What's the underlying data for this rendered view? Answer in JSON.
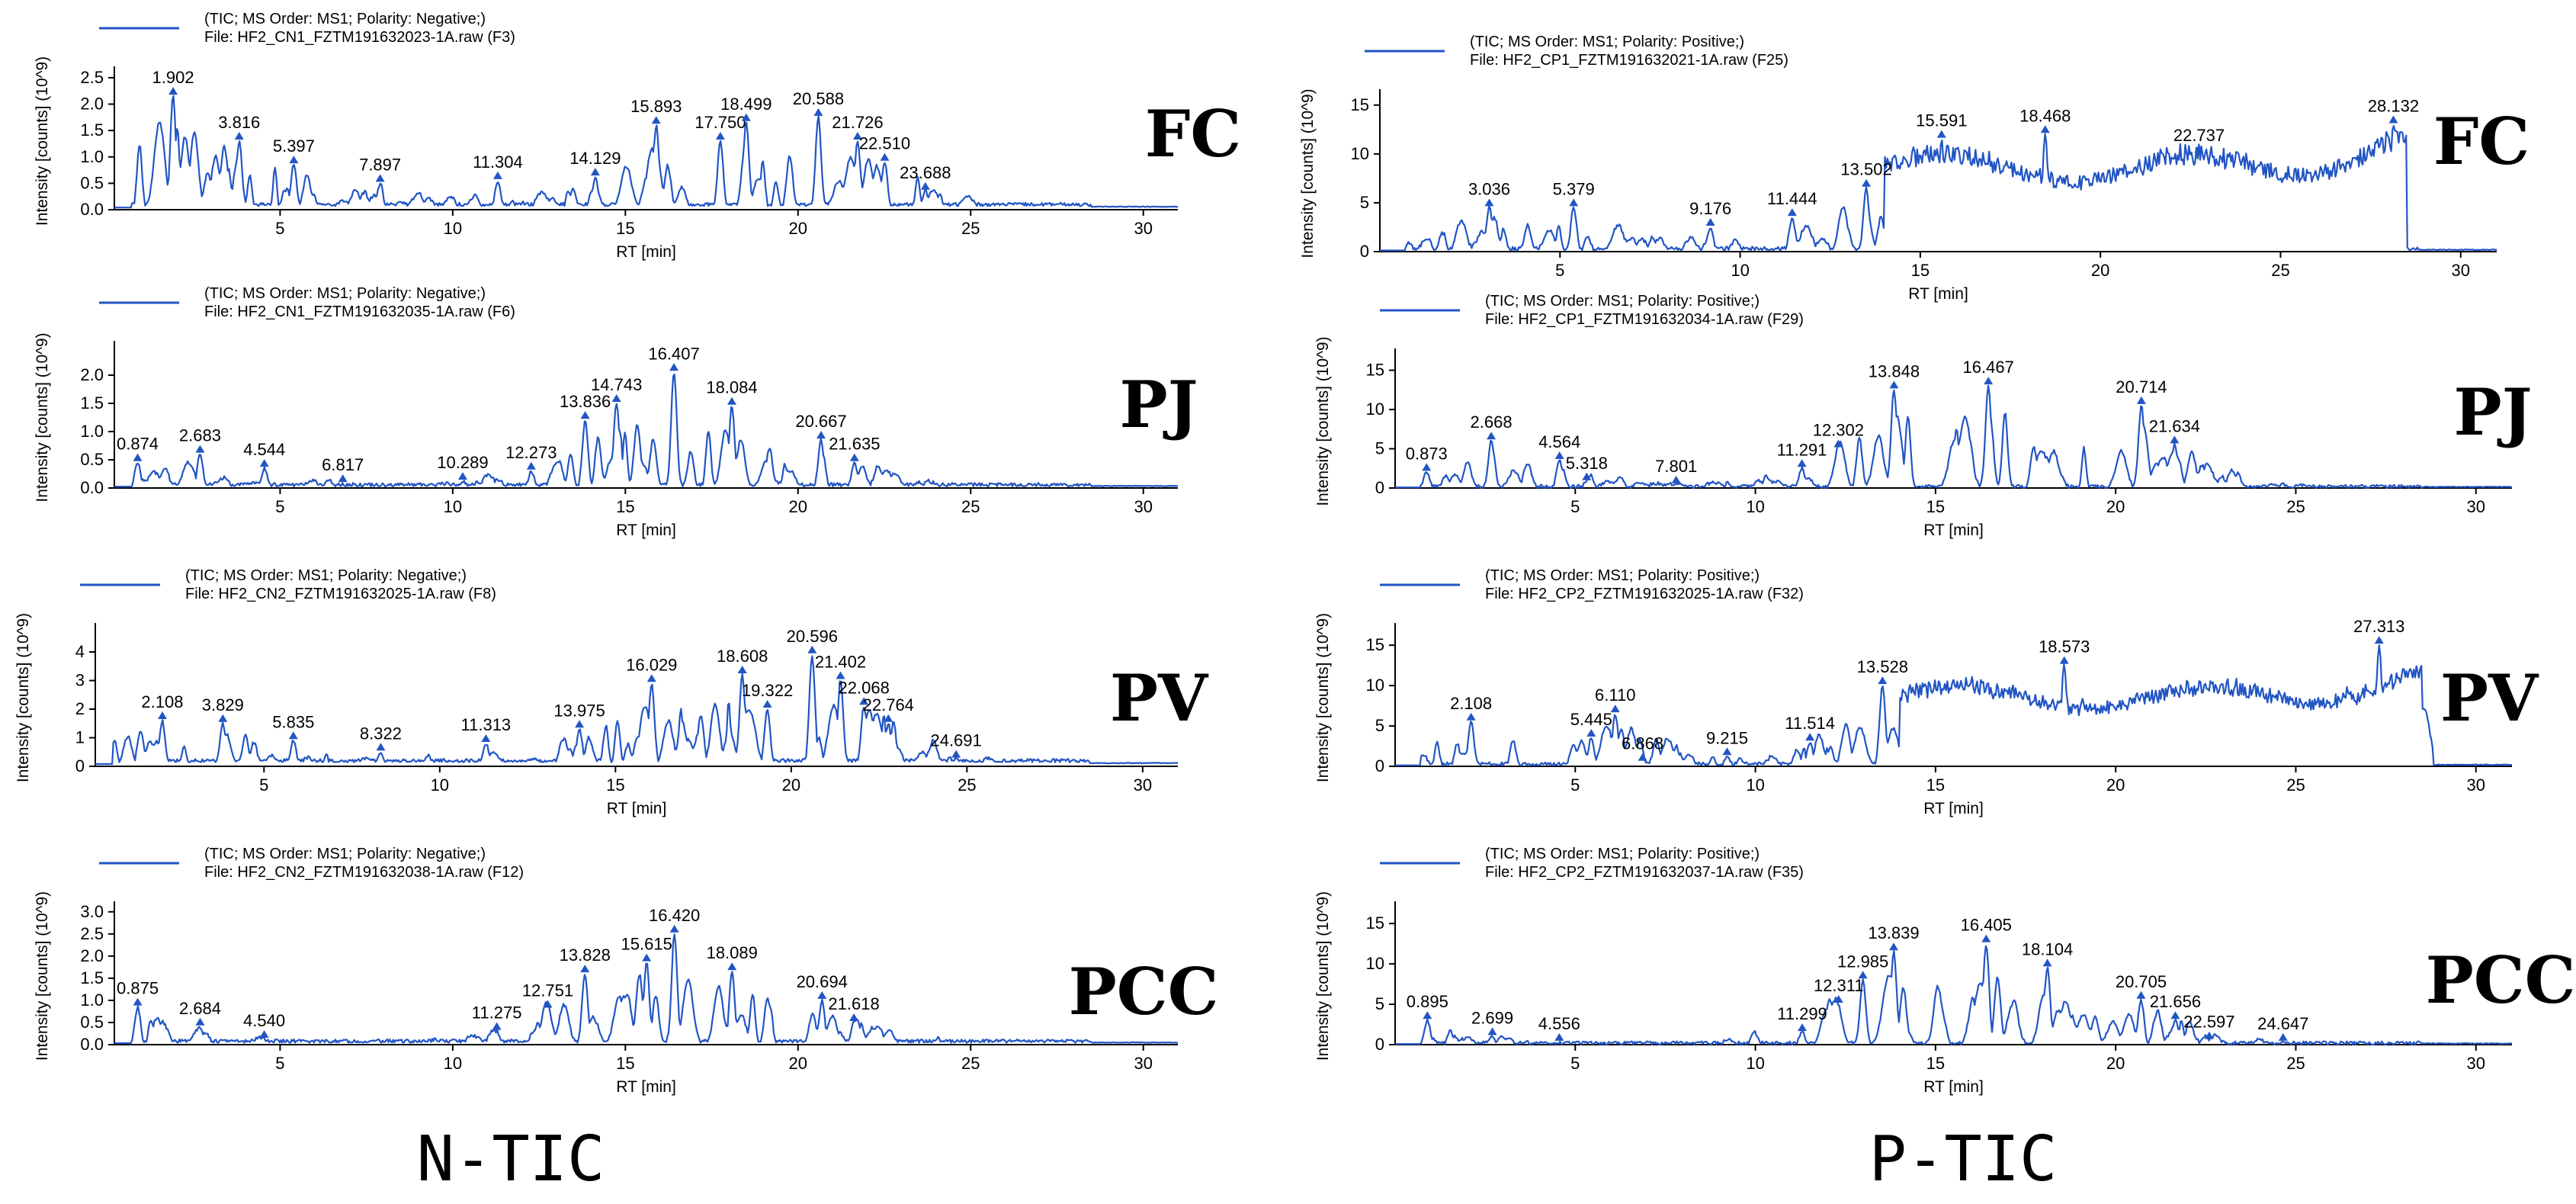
{
  "labels": {
    "left_caption": "N-TIC",
    "right_caption": "P-TIC"
  },
  "colors": {
    "trace": "#2255c4"
  },
  "chart_data": [
    {
      "type": "line",
      "id": "n_fc",
      "sample": "FC",
      "legend": [
        "(TIC; MS Order: MS1; Polarity: Negative;)",
        "File: HF2_CN1_FZTM191632023-1A.raw (F3)"
      ],
      "xlabel": "RT [min]",
      "ylabel": "Intensity [counts] (10^9)",
      "xlim": [
        0.2,
        31
      ],
      "ylim": [
        0,
        2.6
      ],
      "xticks": [
        5,
        10,
        15,
        20,
        25,
        30
      ],
      "yticks": [
        0,
        0.5,
        1.0,
        1.5,
        2.0,
        2.5
      ],
      "baseline": 0.1,
      "start": 0.7,
      "end": 28.5,
      "peaks": [
        {
          "x": 1.902,
          "y": 2.15,
          "label": "1.902"
        },
        {
          "x": 3.816,
          "y": 1.3,
          "label": "3.816"
        },
        {
          "x": 5.397,
          "y": 0.85,
          "label": "5.397"
        },
        {
          "x": 7.897,
          "y": 0.5,
          "label": "7.897"
        },
        {
          "x": 11.304,
          "y": 0.55,
          "label": "11.304"
        },
        {
          "x": 14.129,
          "y": 0.62,
          "label": "14.129"
        },
        {
          "x": 15.893,
          "y": 1.6,
          "label": "15.893"
        },
        {
          "x": 17.75,
          "y": 1.3,
          "label": "17.750"
        },
        {
          "x": 18.499,
          "y": 1.65,
          "label": "18.499"
        },
        {
          "x": 20.588,
          "y": 1.75,
          "label": "20.588"
        },
        {
          "x": 21.726,
          "y": 1.3,
          "label": "21.726"
        },
        {
          "x": 22.51,
          "y": 0.9,
          "label": "22.510"
        },
        {
          "x": 23.688,
          "y": 0.35,
          "label": "23.688"
        }
      ]
    },
    {
      "type": "line",
      "id": "n_pj",
      "sample": "PJ",
      "legend": [
        "(TIC; MS Order: MS1; Polarity: Negative;)",
        "File: HF2_CN1_FZTM191632035-1A.raw (F6)"
      ],
      "xlabel": "RT [min]",
      "ylabel": "Intensity [counts] (10^9)",
      "xlim": [
        0.2,
        31
      ],
      "ylim": [
        0,
        2.5
      ],
      "xticks": [
        5,
        10,
        15,
        20,
        25,
        30
      ],
      "yticks": [
        0,
        0.5,
        1.0,
        1.5,
        2.0
      ],
      "baseline": 0.06,
      "start": 0.7,
      "end": 28.5,
      "peaks": [
        {
          "x": 0.874,
          "y": 0.45,
          "label": "0.874"
        },
        {
          "x": 2.683,
          "y": 0.6,
          "label": "2.683"
        },
        {
          "x": 4.544,
          "y": 0.35,
          "label": "4.544"
        },
        {
          "x": 6.817,
          "y": 0.08,
          "label": "6.817"
        },
        {
          "x": 10.289,
          "y": 0.12,
          "label": "10.289"
        },
        {
          "x": 12.273,
          "y": 0.3,
          "label": "12.273"
        },
        {
          "x": 13.836,
          "y": 1.2,
          "label": "13.836"
        },
        {
          "x": 14.743,
          "y": 1.5,
          "label": "14.743"
        },
        {
          "x": 16.407,
          "y": 2.05,
          "label": "16.407"
        },
        {
          "x": 18.084,
          "y": 1.45,
          "label": "18.084"
        },
        {
          "x": 20.667,
          "y": 0.85,
          "label": "20.667"
        },
        {
          "x": 21.635,
          "y": 0.45,
          "label": "21.635"
        }
      ]
    },
    {
      "type": "line",
      "id": "n_pv",
      "sample": "PV",
      "legend": [
        "(TIC; MS Order: MS1; Polarity: Negative;)",
        "File: HF2_CN2_FZTM191632025-1A.raw (F8)"
      ],
      "xlabel": "RT [min]",
      "ylabel": "Intensity [counts] (10^9)",
      "xlim": [
        0.2,
        31
      ],
      "ylim": [
        0,
        4.8
      ],
      "xticks": [
        5,
        10,
        15,
        20,
        25,
        30
      ],
      "yticks": [
        0,
        1,
        2,
        3,
        4
      ],
      "baseline": 0.2,
      "start": 0.7,
      "end": 28.5,
      "peaks": [
        {
          "x": 2.108,
          "y": 1.6,
          "label": "2.108"
        },
        {
          "x": 3.829,
          "y": 1.5,
          "label": "3.829"
        },
        {
          "x": 5.835,
          "y": 0.9,
          "label": "5.835"
        },
        {
          "x": 8.322,
          "y": 0.5,
          "label": "8.322"
        },
        {
          "x": 11.313,
          "y": 0.8,
          "label": "11.313"
        },
        {
          "x": 13.975,
          "y": 1.3,
          "label": "13.975"
        },
        {
          "x": 16.029,
          "y": 2.9,
          "label": "16.029"
        },
        {
          "x": 18.608,
          "y": 3.2,
          "label": "18.608"
        },
        {
          "x": 19.322,
          "y": 2.0,
          "label": "19.322"
        },
        {
          "x": 20.596,
          "y": 3.9,
          "label": "20.596"
        },
        {
          "x": 21.402,
          "y": 3.0,
          "label": "21.402"
        },
        {
          "x": 22.068,
          "y": 2.1,
          "label": "22.068"
        },
        {
          "x": 22.764,
          "y": 1.5,
          "label": "22.764"
        },
        {
          "x": 24.691,
          "y": 0.25,
          "label": "24.691"
        }
      ]
    },
    {
      "type": "line",
      "id": "n_pcc",
      "sample": "PCC",
      "legend": [
        "(TIC; MS Order: MS1; Polarity: Negative;)",
        "File: HF2_CN2_FZTM191632038-1A.raw (F12)"
      ],
      "xlabel": "RT [min]",
      "ylabel": "Intensity [counts] (10^9)",
      "xlim": [
        0.2,
        31
      ],
      "ylim": [
        0,
        3.1
      ],
      "xticks": [
        5,
        10,
        15,
        20,
        25,
        30
      ],
      "yticks": [
        0,
        0.5,
        1.0,
        1.5,
        2.0,
        2.5,
        3.0
      ],
      "baseline": 0.08,
      "start": 0.7,
      "end": 28.5,
      "peaks": [
        {
          "x": 0.875,
          "y": 0.85,
          "label": "0.875"
        },
        {
          "x": 2.684,
          "y": 0.4,
          "label": "2.684"
        },
        {
          "x": 4.54,
          "y": 0.12,
          "label": "4.540"
        },
        {
          "x": 11.275,
          "y": 0.3,
          "label": "11.275"
        },
        {
          "x": 12.751,
          "y": 0.8,
          "label": "12.751"
        },
        {
          "x": 13.828,
          "y": 1.6,
          "label": "13.828"
        },
        {
          "x": 15.615,
          "y": 1.85,
          "label": "15.615"
        },
        {
          "x": 16.42,
          "y": 2.5,
          "label": "16.420"
        },
        {
          "x": 18.089,
          "y": 1.65,
          "label": "18.089"
        },
        {
          "x": 20.694,
          "y": 1.0,
          "label": "20.694"
        },
        {
          "x": 21.618,
          "y": 0.5,
          "label": "21.618"
        }
      ]
    },
    {
      "type": "line",
      "id": "p_fc",
      "sample": "FC",
      "legend": [
        "(TIC; MS Order: MS1; Polarity: Positive;)",
        "File: HF2_CP1_FZTM191632021-1A.raw (F25)"
      ],
      "xlabel": "RT [min]",
      "ylabel": "Intensity [counts] (10^9)",
      "xlim": [
        0,
        31
      ],
      "ylim": [
        0,
        16
      ],
      "xticks": [
        5,
        10,
        15,
        20,
        25,
        30
      ],
      "yticks": [
        0,
        5,
        10,
        15
      ],
      "baseline": 0.3,
      "start": 0.7,
      "end": 28.8,
      "plateau": true,
      "peaks": [
        {
          "x": 3.036,
          "y": 4.5,
          "label": "3.036"
        },
        {
          "x": 5.379,
          "y": 4.5,
          "label": "5.379"
        },
        {
          "x": 9.176,
          "y": 2.5,
          "label": "9.176"
        },
        {
          "x": 11.444,
          "y": 3.5,
          "label": "11.444"
        },
        {
          "x": 13.502,
          "y": 6.5,
          "label": "13.502"
        },
        {
          "x": 15.591,
          "y": 11.5,
          "label": "15.591"
        },
        {
          "x": 18.468,
          "y": 12.0,
          "label": "18.468"
        },
        {
          "x": 22.737,
          "y": 10.0,
          "label": "22.737"
        },
        {
          "x": 28.132,
          "y": 13.0,
          "label": "28.132"
        }
      ]
    },
    {
      "type": "line",
      "id": "p_pj",
      "sample": "PJ",
      "legend": [
        "(TIC; MS Order: MS1; Polarity: Positive;)",
        "File: HF2_CP1_FZTM191632034-1A.raw (F29)"
      ],
      "xlabel": "RT [min]",
      "ylabel": "Intensity [counts] (10^9)",
      "xlim": [
        0,
        31
      ],
      "ylim": [
        0,
        17
      ],
      "xticks": [
        5,
        10,
        15,
        20,
        25,
        30
      ],
      "yticks": [
        0,
        5,
        10,
        15
      ],
      "baseline": 0.2,
      "start": 0.7,
      "end": 28.5,
      "peaks": [
        {
          "x": 0.873,
          "y": 2.0,
          "label": "0.873"
        },
        {
          "x": 2.668,
          "y": 6.0,
          "label": "2.668"
        },
        {
          "x": 4.564,
          "y": 3.5,
          "label": "4.564"
        },
        {
          "x": 5.318,
          "y": 0.8,
          "label": "5.318"
        },
        {
          "x": 7.801,
          "y": 0.4,
          "label": "7.801"
        },
        {
          "x": 11.291,
          "y": 2.5,
          "label": "11.291"
        },
        {
          "x": 12.302,
          "y": 5.0,
          "label": "12.302"
        },
        {
          "x": 13.848,
          "y": 12.5,
          "label": "13.848"
        },
        {
          "x": 16.467,
          "y": 13.0,
          "label": "16.467"
        },
        {
          "x": 20.714,
          "y": 10.5,
          "label": "20.714"
        },
        {
          "x": 21.634,
          "y": 5.5,
          "label": "21.634"
        }
      ]
    },
    {
      "type": "line",
      "id": "p_pv",
      "sample": "PV",
      "legend": [
        "(TIC; MS Order: MS1; Polarity: Positive;)",
        "File: HF2_CP2_FZTM191632025-1A.raw (F32)"
      ],
      "xlabel": "RT [min]",
      "ylabel": "Intensity [counts] (10^9)",
      "xlim": [
        0,
        31
      ],
      "ylim": [
        0,
        17
      ],
      "xticks": [
        5,
        10,
        15,
        20,
        25,
        30
      ],
      "yticks": [
        0,
        5,
        10,
        15
      ],
      "baseline": 0.3,
      "start": 0.7,
      "end": 28.8,
      "plateau": true,
      "peaks": [
        {
          "x": 2.108,
          "y": 5.5,
          "label": "2.108"
        },
        {
          "x": 5.445,
          "y": 3.5,
          "label": "5.445"
        },
        {
          "x": 6.11,
          "y": 6.5,
          "label": "6.110"
        },
        {
          "x": 6.868,
          "y": 0.5,
          "label": "6.868"
        },
        {
          "x": 9.215,
          "y": 1.2,
          "label": "9.215"
        },
        {
          "x": 11.514,
          "y": 3.0,
          "label": "11.514"
        },
        {
          "x": 13.528,
          "y": 10.0,
          "label": "13.528"
        },
        {
          "x": 18.573,
          "y": 12.5,
          "label": "18.573"
        },
        {
          "x": 27.313,
          "y": 15.0,
          "label": "27.313"
        }
      ]
    },
    {
      "type": "line",
      "id": "p_pcc",
      "sample": "PCC",
      "legend": [
        "(TIC; MS Order: MS1; Polarity: Positive;)",
        "File: HF2_CP2_FZTM191632037-1A.raw (F35)"
      ],
      "xlabel": "RT [min]",
      "ylabel": "Intensity [counts] (10^9)",
      "xlim": [
        0,
        31
      ],
      "ylim": [
        0,
        17
      ],
      "xticks": [
        5,
        10,
        15,
        20,
        25,
        30
      ],
      "yticks": [
        0,
        5,
        10,
        15
      ],
      "baseline": 0.2,
      "start": 0.7,
      "end": 28.5,
      "peaks": [
        {
          "x": 0.895,
          "y": 3.0,
          "label": "0.895"
        },
        {
          "x": 2.699,
          "y": 1.0,
          "label": "2.699"
        },
        {
          "x": 4.556,
          "y": 0.3,
          "label": "4.556"
        },
        {
          "x": 11.299,
          "y": 1.5,
          "label": "11.299"
        },
        {
          "x": 12.311,
          "y": 5.0,
          "label": "12.311"
        },
        {
          "x": 12.985,
          "y": 8.0,
          "label": "12.985"
        },
        {
          "x": 13.839,
          "y": 11.5,
          "label": "13.839"
        },
        {
          "x": 16.405,
          "y": 12.5,
          "label": "16.405"
        },
        {
          "x": 18.104,
          "y": 9.5,
          "label": "18.104"
        },
        {
          "x": 20.705,
          "y": 5.5,
          "label": "20.705"
        },
        {
          "x": 21.656,
          "y": 3.0,
          "label": "21.656"
        },
        {
          "x": 22.597,
          "y": 0.5,
          "label": "22.597"
        },
        {
          "x": 24.647,
          "y": 0.3,
          "label": "24.647"
        }
      ]
    }
  ]
}
